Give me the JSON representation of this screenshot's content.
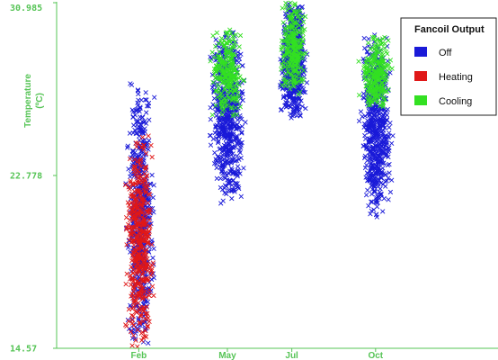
{
  "chart_data": {
    "type": "scatter",
    "title": "",
    "xlabel": "",
    "ylabel": "Temperature",
    "ylabel_unit": "(ºC)",
    "ylim": [
      14.57,
      30.985
    ],
    "y_ticks": [
      {
        "label": "30.985",
        "value": 30.985
      },
      {
        "label": "22.778",
        "value": 22.778
      },
      {
        "label": "14.57",
        "value": 14.57
      }
    ],
    "x_ticks": [
      {
        "label": "Feb",
        "month": 2.55
      },
      {
        "label": "May",
        "month": 5.3
      },
      {
        "label": "Jul",
        "month": 7.3
      },
      {
        "label": "Oct",
        "month": 9.9
      }
    ],
    "x_range_months": [
      0,
      13.7
    ],
    "grid": false,
    "axis_color": "#56c456",
    "legend": {
      "title": "Fancoil Output",
      "placement": "top-right",
      "entries": [
        {
          "label": "Off",
          "color": "#1a1ad8"
        },
        {
          "label": "Heating",
          "color": "#e01818"
        },
        {
          "label": "Cooling",
          "color": "#33e022"
        }
      ]
    },
    "series": [
      {
        "name": "Off",
        "color": "#1a1ad8",
        "clusters": [
          {
            "month_range": [
              2.1,
              3.1
            ],
            "temp_range": [
              14.57,
              27.2
            ]
          },
          {
            "month_range": [
              4.65,
              5.95
            ],
            "temp_range": [
              21.4,
              29.7
            ]
          },
          {
            "month_range": [
              6.85,
              7.85
            ],
            "temp_range": [
              25.5,
              30.985
            ]
          },
          {
            "month_range": [
              9.35,
              10.5
            ],
            "temp_range": [
              20.7,
              29.5
            ]
          }
        ]
      },
      {
        "name": "Heating",
        "color": "#e01818",
        "clusters": [
          {
            "month_range": [
              2.05,
              3.1
            ],
            "temp_range": [
              14.57,
              24.7
            ]
          }
        ]
      },
      {
        "name": "Cooling",
        "color": "#33e022",
        "clusters": [
          {
            "month_range": [
              4.65,
              5.95
            ],
            "temp_range": [
              25.5,
              29.7
            ]
          },
          {
            "month_range": [
              6.85,
              7.85
            ],
            "temp_range": [
              26.5,
              30.985
            ]
          },
          {
            "month_range": [
              9.35,
              10.5
            ],
            "temp_range": [
              25.9,
              29.4
            ]
          }
        ]
      }
    ]
  }
}
